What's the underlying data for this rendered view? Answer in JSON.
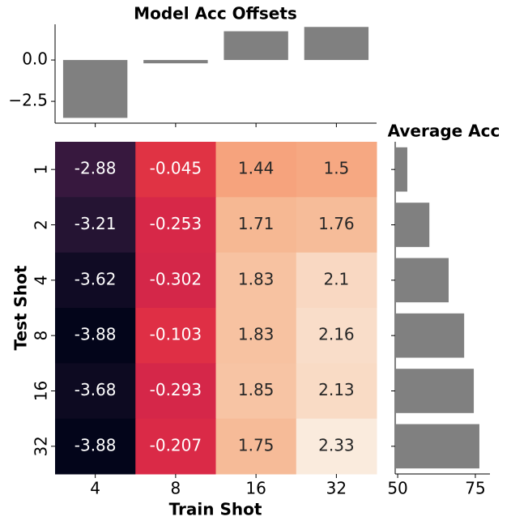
{
  "chart_data": [
    {
      "type": "bar",
      "title": "Model Acc Offsets",
      "categories": [
        "4",
        "8",
        "16",
        "32"
      ],
      "values": [
        -3.5,
        -0.2,
        1.74,
        2.0
      ],
      "color": "#808080",
      "ylim": [
        -3.82,
        2.16
      ],
      "yticks": [
        {
          "value": 0,
          "label": "0.0"
        },
        {
          "value": -2.5,
          "label": "−2.5"
        }
      ]
    },
    {
      "type": "heatmap",
      "xlabel": "Train Shot",
      "ylabel": "Test Shot",
      "x": [
        "4",
        "8",
        "16",
        "32"
      ],
      "y": [
        "1",
        "2",
        "4",
        "8",
        "16",
        "32"
      ],
      "values": [
        [
          -2.88,
          -0.045,
          1.44,
          1.5
        ],
        [
          -3.21,
          -0.253,
          1.71,
          1.76
        ],
        [
          -3.62,
          -0.302,
          1.83,
          2.1
        ],
        [
          -3.88,
          -0.103,
          1.83,
          2.16
        ],
        [
          -3.68,
          -0.293,
          1.85,
          2.13
        ],
        [
          -3.88,
          -0.207,
          1.75,
          2.33
        ]
      ],
      "colormap": "rocket"
    },
    {
      "type": "barh",
      "title": "Average Acc",
      "categories": [
        "1",
        "2",
        "4",
        "8",
        "16",
        "32"
      ],
      "values": [
        53.1,
        60.2,
        66.4,
        71.4,
        74.5,
        76.3
      ],
      "color": "#808080",
      "xlim": [
        49.2,
        79.7
      ],
      "xticks": [
        50,
        75
      ]
    }
  ]
}
